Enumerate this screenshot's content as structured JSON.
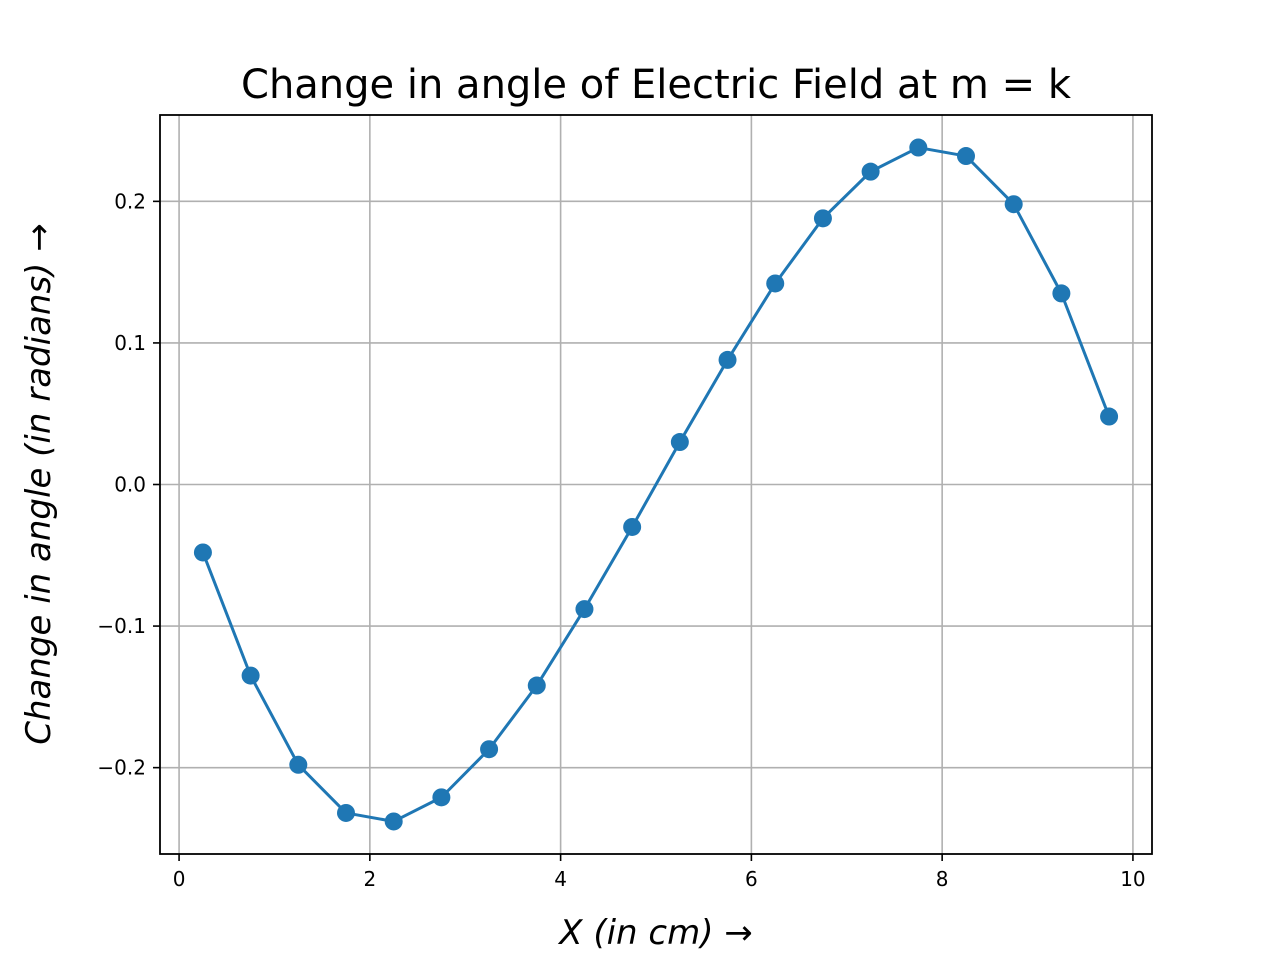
{
  "chart_data": {
    "type": "line",
    "title": "Change in angle of Electric Field at m = k",
    "xlabel": "X (in cm) →",
    "ylabel": "Change in angle (in radians) →",
    "xlim": [
      -0.2,
      10.2
    ],
    "ylim": [
      -0.261,
      0.261
    ],
    "x_ticks": [
      0,
      2,
      4,
      6,
      8,
      10
    ],
    "x_tick_labels": [
      "0",
      "2",
      "4",
      "6",
      "8",
      "10"
    ],
    "y_ticks": [
      -0.2,
      -0.1,
      0.0,
      0.1,
      0.2
    ],
    "y_tick_labels": [
      "−0.2",
      "−0.1",
      "0.0",
      "0.1",
      "0.2"
    ],
    "grid": true,
    "series": [
      {
        "color": "#1f77b4",
        "marker": "circle",
        "x": [
          0.25,
          0.75,
          1.25,
          1.75,
          2.25,
          2.75,
          3.25,
          3.75,
          4.25,
          4.75,
          5.25,
          5.75,
          6.25,
          6.75,
          7.25,
          7.75,
          8.25,
          8.75,
          9.25,
          9.75
        ],
        "y": [
          -0.048,
          -0.135,
          -0.198,
          -0.232,
          -0.238,
          -0.221,
          -0.187,
          -0.142,
          -0.088,
          -0.03,
          0.03,
          0.088,
          0.142,
          0.188,
          0.221,
          0.238,
          0.232,
          0.198,
          0.135,
          0.048
        ]
      }
    ]
  }
}
